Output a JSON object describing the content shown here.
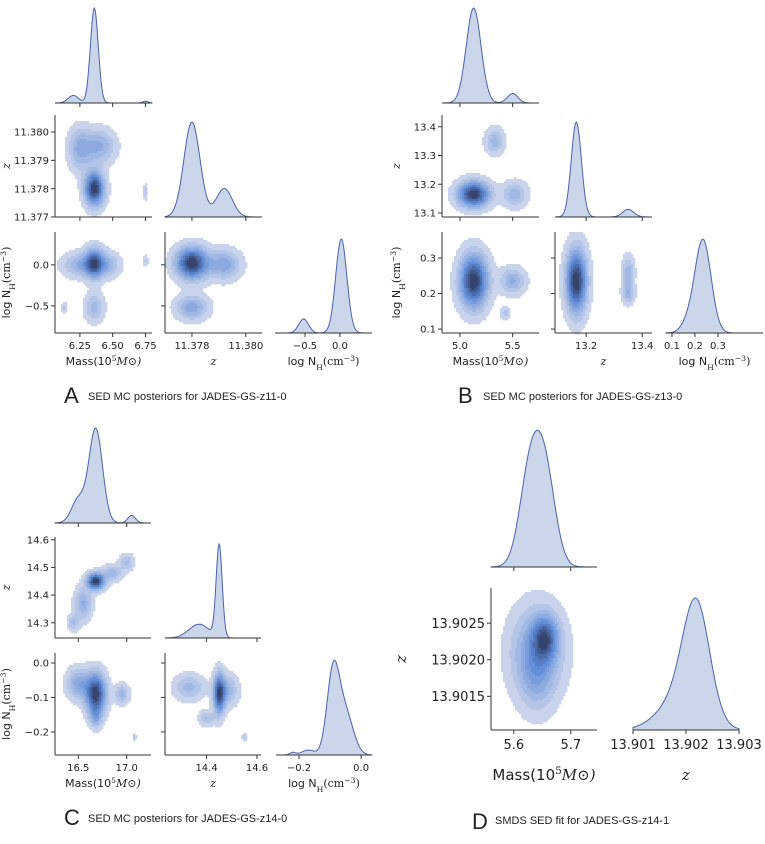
{
  "colors": {
    "fill_light": "#c9d3ec",
    "fill_mid": "#5b8ad6",
    "fill_dark": "#34446e",
    "marginal_fill": "#ccd6ea",
    "marginal_line": "#4a63a8",
    "axis": "#333333"
  },
  "chart_data": [
    {
      "type": "corner",
      "panel_letter": "A",
      "caption": "SED MC posteriors for JADES-GS-z11-0",
      "grid": false,
      "params": [
        {
          "label": [
            "Mass(10",
            "5",
            "M⊙)"
          ],
          "xrange": [
            6.06,
            6.8
          ],
          "yrange": [
            6.06,
            6.8
          ],
          "xticks": [
            6.25,
            6.5,
            6.75
          ],
          "xtick_labels": [
            "6.25",
            "6.50",
            "6.75"
          ],
          "yticks": [],
          "ytick_labels": []
        },
        {
          "label": [
            "z"
          ],
          "xrange": [
            11.377,
            11.3806
          ],
          "yrange": [
            11.377,
            11.3806
          ],
          "xticks": [
            11.378,
            11.38
          ],
          "xtick_labels": [
            "11.378",
            "11.380"
          ],
          "yticks": [
            11.377,
            11.378,
            11.379,
            11.38
          ],
          "ytick_labels": [
            "11.377",
            "11.378",
            "11.379",
            "11.380"
          ]
        },
        {
          "label": [
            "log N",
            "H",
            "(cm",
            "−3",
            ")"
          ],
          "xrange": [
            -0.93,
            0.46
          ],
          "yrange": [
            -0.83,
            0.4
          ],
          "xticks": [
            -0.5,
            0.0
          ],
          "xtick_labels": [
            "−0.5",
            "0.0"
          ],
          "yticks": [
            -0.5,
            0.0
          ],
          "ytick_labels": [
            "−0.5",
            "0.0"
          ]
        }
      ],
      "marginals": [
        [
          {
            "m": 6.36,
            "s": 0.03,
            "w": 1
          },
          {
            "m": 6.2,
            "s": 0.04,
            "w": 0.08
          },
          {
            "m": 6.75,
            "s": 0.02,
            "w": 0.02
          }
        ],
        [
          {
            "m": 11.378,
            "s": 0.0003,
            "w": 1
          },
          {
            "m": 11.3792,
            "s": 0.0003,
            "w": 0.3
          }
        ],
        [
          {
            "m": 0.02,
            "s": 0.08,
            "w": 1
          },
          {
            "m": -0.52,
            "s": 0.07,
            "w": 0.15
          }
        ]
      ],
      "joints": [
        {
          "x": 0,
          "y": 1,
          "components": [
            {
              "mx": 6.36,
              "my": 11.378,
              "sx": 0.05,
              "sy": 0.0004,
              "w": 1
            },
            {
              "mx": 6.25,
              "my": 11.3794,
              "sx": 0.06,
              "sy": 0.0005,
              "w": 0.35
            },
            {
              "mx": 6.4,
              "my": 11.3795,
              "sx": 0.08,
              "sy": 0.0004,
              "w": 0.35
            },
            {
              "mx": 6.75,
              "my": 11.3779,
              "sx": 0.01,
              "sy": 0.0002,
              "w": 0.2
            }
          ]
        },
        {
          "x": 0,
          "y": 2,
          "components": [
            {
              "mx": 6.36,
              "my": 0.02,
              "sx": 0.05,
              "sy": 0.12,
              "w": 1
            },
            {
              "mx": 6.25,
              "my": 0.0,
              "sx": 0.09,
              "sy": 0.1,
              "w": 0.4
            },
            {
              "mx": 6.47,
              "my": 0.0,
              "sx": 0.06,
              "sy": 0.1,
              "w": 0.35
            },
            {
              "mx": 6.36,
              "my": -0.52,
              "sx": 0.05,
              "sy": 0.12,
              "w": 0.35
            },
            {
              "mx": 6.13,
              "my": -0.52,
              "sx": 0.015,
              "sy": 0.05,
              "w": 0.2
            },
            {
              "mx": 6.75,
              "my": 0.05,
              "sx": 0.015,
              "sy": 0.05,
              "w": 0.2
            }
          ]
        },
        {
          "x": 1,
          "y": 2,
          "components": [
            {
              "mx": 11.378,
              "my": 0.02,
              "sx": 0.0004,
              "sy": 0.13,
              "w": 1
            },
            {
              "mx": 11.3792,
              "my": 0.0,
              "sx": 0.0004,
              "sy": 0.12,
              "w": 0.4
            },
            {
              "mx": 11.378,
              "my": -0.52,
              "sx": 0.0004,
              "sy": 0.1,
              "w": 0.4
            }
          ]
        }
      ]
    },
    {
      "type": "corner",
      "panel_letter": "B",
      "caption": "SED MC posteriors for JADES-GS-z13-0",
      "grid": false,
      "params": [
        {
          "label": [
            "Mass(10",
            "5",
            "M⊙)"
          ],
          "xrange": [
            4.83,
            5.75
          ],
          "yrange": [
            4.83,
            5.75
          ],
          "xticks": [
            5.0,
            5.5
          ],
          "xtick_labels": [
            "5.0",
            "5.5"
          ],
          "yticks": [],
          "ytick_labels": []
        },
        {
          "label": [
            "z"
          ],
          "xrange": [
            13.089,
            13.435
          ],
          "yrange": [
            13.086,
            13.441
          ],
          "xticks": [
            13.2,
            13.4
          ],
          "xtick_labels": [
            "13.2",
            "13.4"
          ],
          "yticks": [
            13.1,
            13.2,
            13.3,
            13.4
          ],
          "ytick_labels": [
            "13.1",
            "13.2",
            "13.3",
            "13.4"
          ]
        },
        {
          "label": [
            "log N",
            "H",
            "(cm",
            "−3",
            ")"
          ],
          "xrange": [
            0.074,
            0.496
          ],
          "yrange": [
            0.089,
            0.373
          ],
          "xticks": [
            0.1,
            0.2,
            0.3
          ],
          "xtick_labels": [
            "0.1",
            "0.2",
            "0.3"
          ],
          "yticks": [
            0.1,
            0.2,
            0.3
          ],
          "ytick_labels": [
            "0.1",
            "0.2",
            "0.3"
          ]
        }
      ],
      "marginals": [
        [
          {
            "m": 5.13,
            "s": 0.07,
            "w": 1
          },
          {
            "m": 5.5,
            "s": 0.05,
            "w": 0.1
          }
        ],
        [
          {
            "m": 13.165,
            "s": 0.018,
            "w": 1
          },
          {
            "m": 13.35,
            "s": 0.02,
            "w": 0.08
          }
        ],
        [
          {
            "m": 0.235,
            "s": 0.035,
            "w": 1
          },
          {
            "m": 0.17,
            "s": 0.03,
            "w": 0.1
          }
        ]
      ],
      "joints": [
        {
          "x": 0,
          "y": 1,
          "components": [
            {
              "mx": 5.13,
              "my": 13.165,
              "sx": 0.1,
              "sy": 0.03,
              "w": 1
            },
            {
              "mx": 5.52,
              "my": 13.165,
              "sx": 0.08,
              "sy": 0.03,
              "w": 0.3
            },
            {
              "mx": 5.33,
              "my": 13.35,
              "sx": 0.06,
              "sy": 0.03,
              "w": 0.3
            }
          ]
        },
        {
          "x": 0,
          "y": 2,
          "components": [
            {
              "mx": 5.13,
              "my": 0.235,
              "sx": 0.09,
              "sy": 0.05,
              "w": 1
            },
            {
              "mx": 5.5,
              "my": 0.235,
              "sx": 0.08,
              "sy": 0.025,
              "w": 0.35
            },
            {
              "mx": 5.43,
              "my": 0.145,
              "sx": 0.03,
              "sy": 0.012,
              "w": 0.2
            }
          ]
        },
        {
          "x": 1,
          "y": 2,
          "components": [
            {
              "mx": 13.165,
              "my": 0.235,
              "sx": 0.025,
              "sy": 0.06,
              "w": 1
            },
            {
              "mx": 13.35,
              "my": 0.26,
              "sx": 0.015,
              "sy": 0.03,
              "w": 0.3
            },
            {
              "mx": 13.35,
              "my": 0.2,
              "sx": 0.015,
              "sy": 0.02,
              "w": 0.3
            }
          ]
        }
      ]
    },
    {
      "type": "corner",
      "panel_letter": "C",
      "caption": "SED MC posteriors for JADES-GS-z14-0",
      "grid": false,
      "params": [
        {
          "label": [
            "Mass(10",
            "5",
            "M⊙)"
          ],
          "xrange": [
            16.26,
            17.25
          ],
          "yrange": [
            16.26,
            17.25
          ],
          "xticks": [
            16.5,
            17.0
          ],
          "xtick_labels": [
            "16.5",
            "17.0"
          ],
          "yticks": [],
          "ytick_labels": []
        },
        {
          "label": [
            "z"
          ],
          "xrange": [
            14.235,
            14.616
          ],
          "yrange": [
            14.245,
            14.61
          ],
          "xticks": [
            14.4,
            14.6
          ],
          "xtick_labels": [
            "14.4",
            "14.6"
          ],
          "yticks": [
            14.3,
            14.4,
            14.5,
            14.6
          ],
          "ytick_labels": [
            "14.3",
            "14.4",
            "14.5",
            "14.6"
          ]
        },
        {
          "label": [
            "log N",
            "H",
            "(cm",
            "−3",
            ")"
          ],
          "xrange": [
            -0.274,
            0.035
          ],
          "yrange": [
            -0.267,
            0.029
          ],
          "xticks": [
            -0.2,
            0.0
          ],
          "xtick_labels": [
            "−0.2",
            "0.0"
          ],
          "yticks": [
            -0.2,
            -0.1,
            0.0
          ],
          "ytick_labels": [
            "−0.2",
            "−0.1",
            "0.0"
          ]
        }
      ],
      "marginals": [
        [
          {
            "m": 16.68,
            "s": 0.07,
            "w": 1
          },
          {
            "m": 16.5,
            "s": 0.07,
            "w": 0.25
          },
          {
            "m": 17.05,
            "s": 0.04,
            "w": 0.08
          }
        ],
        [
          {
            "m": 14.45,
            "s": 0.012,
            "w": 1
          },
          {
            "m": 14.37,
            "s": 0.04,
            "w": 0.15
          }
        ],
        [
          {
            "m": -0.09,
            "s": 0.02,
            "w": 1
          },
          {
            "m": -0.05,
            "s": 0.025,
            "w": 0.5
          },
          {
            "m": -0.17,
            "s": 0.02,
            "w": 0.06
          },
          {
            "m": -0.22,
            "s": 0.01,
            "w": 0.03
          }
        ]
      ],
      "joints": [
        {
          "x": 0,
          "y": 1,
          "components": [
            {
              "mx": 16.68,
              "my": 14.45,
              "sx": 0.06,
              "sy": 0.02,
              "w": 1
            },
            {
              "mx": 16.55,
              "my": 14.37,
              "sx": 0.06,
              "sy": 0.04,
              "w": 0.35
            },
            {
              "mx": 16.45,
              "my": 14.3,
              "sx": 0.04,
              "sy": 0.02,
              "w": 0.25
            },
            {
              "mx": 16.85,
              "my": 14.48,
              "sx": 0.07,
              "sy": 0.02,
              "w": 0.3
            },
            {
              "mx": 17.0,
              "my": 14.52,
              "sx": 0.05,
              "sy": 0.02,
              "w": 0.25
            }
          ]
        },
        {
          "x": 0,
          "y": 2,
          "components": [
            {
              "mx": 16.68,
              "my": -0.09,
              "sx": 0.07,
              "sy": 0.04,
              "w": 1
            },
            {
              "mx": 16.5,
              "my": -0.06,
              "sx": 0.08,
              "sy": 0.03,
              "w": 0.4
            },
            {
              "mx": 16.95,
              "my": -0.09,
              "sx": 0.05,
              "sy": 0.02,
              "w": 0.3
            },
            {
              "mx": 16.68,
              "my": -0.16,
              "sx": 0.04,
              "sy": 0.02,
              "w": 0.3
            },
            {
              "mx": 17.08,
              "my": -0.215,
              "sx": 0.01,
              "sy": 0.008,
              "w": 0.2
            }
          ]
        },
        {
          "x": 1,
          "y": 2,
          "components": [
            {
              "mx": 14.45,
              "my": -0.09,
              "sx": 0.015,
              "sy": 0.04,
              "w": 1
            },
            {
              "mx": 14.33,
              "my": -0.07,
              "sx": 0.04,
              "sy": 0.025,
              "w": 0.35
            },
            {
              "mx": 14.48,
              "my": -0.08,
              "sx": 0.03,
              "sy": 0.03,
              "w": 0.4
            },
            {
              "mx": 14.4,
              "my": -0.16,
              "sx": 0.02,
              "sy": 0.015,
              "w": 0.3
            },
            {
              "mx": 14.55,
              "my": -0.215,
              "sx": 0.007,
              "sy": 0.008,
              "w": 0.2
            }
          ]
        }
      ]
    },
    {
      "type": "corner",
      "panel_letter": "D",
      "caption": "SMDS SED fit for JADES-GS-z14-1",
      "grid": false,
      "params": [
        {
          "label": [
            "Mass(10",
            "5",
            "M⊙)"
          ],
          "xrange": [
            5.56,
            5.746
          ],
          "yrange": [
            5.56,
            5.746
          ],
          "xticks": [
            5.6,
            5.7
          ],
          "xtick_labels": [
            "5.6",
            "5.7"
          ],
          "yticks": [],
          "ytick_labels": []
        },
        {
          "label": [
            "z"
          ],
          "xrange": [
            13.901,
            13.903
          ],
          "yrange": [
            13.90104,
            13.90298
          ],
          "xticks": [
            13.901,
            13.902,
            13.903
          ],
          "xtick_labels": [
            "13.901",
            "13.902",
            "13.903"
          ],
          "yticks": [
            13.9015,
            13.902,
            13.9025
          ],
          "ytick_labels": [
            "13.9015",
            "13.9020",
            "13.9025"
          ]
        }
      ],
      "marginals": [
        [
          {
            "m": 5.628,
            "s": 0.018,
            "w": 1
          },
          {
            "m": 5.655,
            "s": 0.018,
            "w": 1
          }
        ],
        [
          {
            "m": 13.9022,
            "s": 0.00025,
            "w": 1
          },
          {
            "m": 13.9019,
            "s": 0.0004,
            "w": 0.3
          }
        ]
      ],
      "joints": [
        {
          "x": 0,
          "y": 1,
          "components": [
            {
              "mx": 5.655,
              "my": 13.9023,
              "sx": 0.015,
              "sy": 0.0002,
              "w": 1
            },
            {
              "mx": 5.64,
              "my": 13.9021,
              "sx": 0.03,
              "sy": 0.0004,
              "w": 0.8
            },
            {
              "mx": 5.64,
              "my": 13.9017,
              "sx": 0.02,
              "sy": 0.0003,
              "w": 0.3
            }
          ]
        }
      ]
    }
  ]
}
